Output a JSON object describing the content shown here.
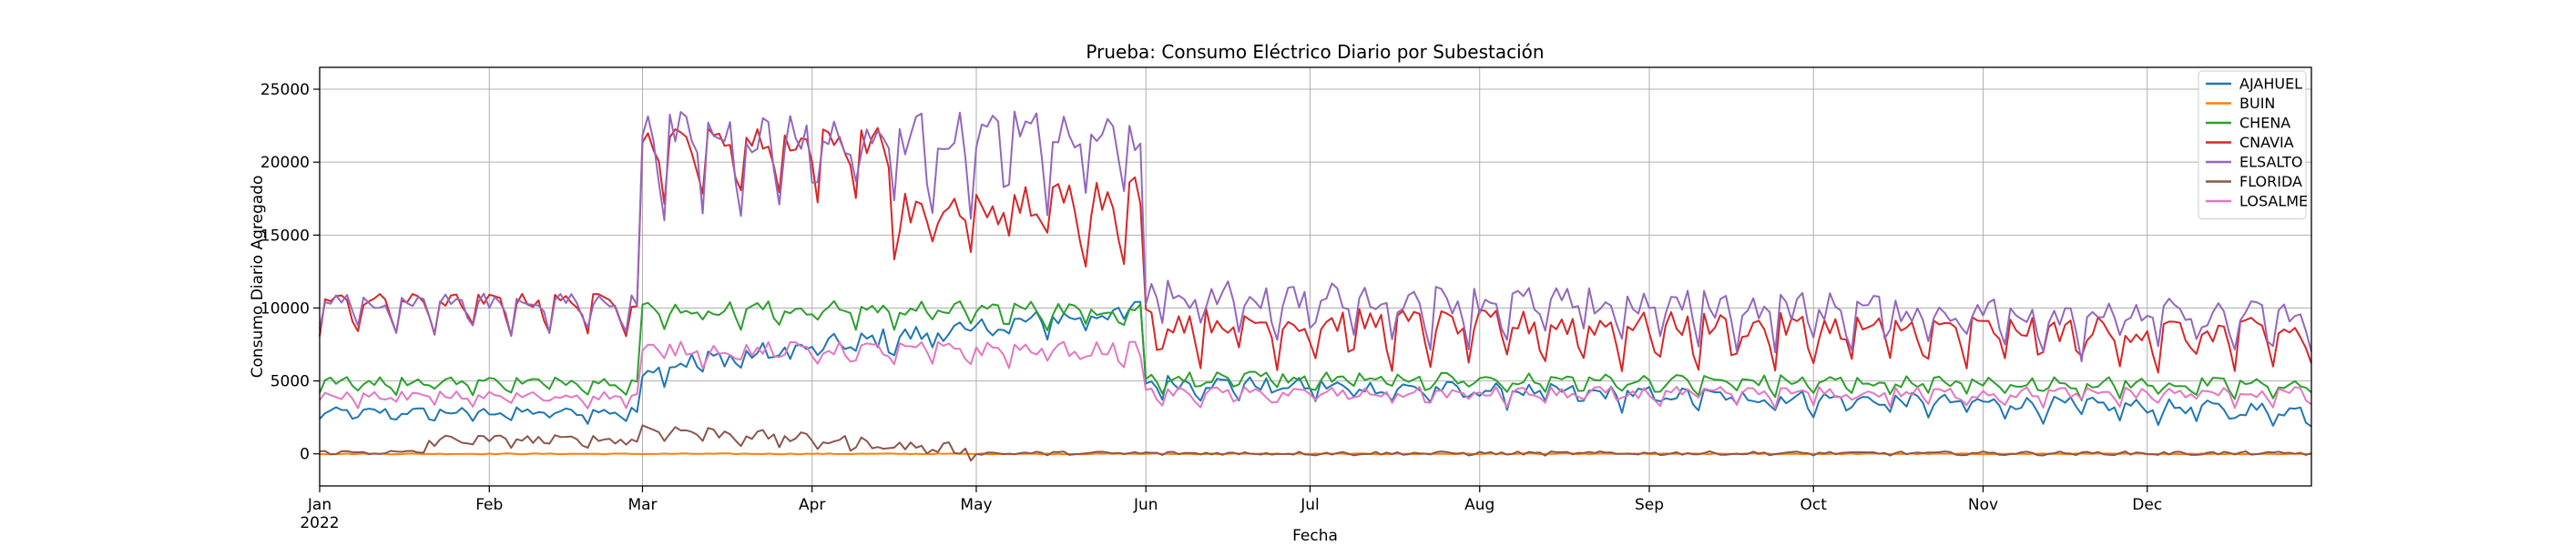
{
  "chart_data": {
    "type": "line",
    "title": "Prueba: Consumo Eléctrico Diario por Subestación",
    "xlabel": "Fecha",
    "ylabel": "Consumo Diario Agregado",
    "x_range": [
      "2022-01-01",
      "2022-12-31"
    ],
    "ylim": [
      -2200,
      26500
    ],
    "y_ticks": [
      0,
      5000,
      10000,
      15000,
      20000,
      25000
    ],
    "x_ticks": [
      {
        "date": "2022-01-01",
        "label": "Jan",
        "sublabel": "2022"
      },
      {
        "date": "2022-02-01",
        "label": "Feb"
      },
      {
        "date": "2022-03-01",
        "label": "Mar"
      },
      {
        "date": "2022-04-01",
        "label": "Apr"
      },
      {
        "date": "2022-05-01",
        "label": "May"
      },
      {
        "date": "2022-06-01",
        "label": "Jun"
      },
      {
        "date": "2022-07-01",
        "label": "Jul"
      },
      {
        "date": "2022-08-01",
        "label": "Aug"
      },
      {
        "date": "2022-09-01",
        "label": "Sep"
      },
      {
        "date": "2022-10-01",
        "label": "Oct"
      },
      {
        "date": "2022-11-01",
        "label": "Nov"
      },
      {
        "date": "2022-12-01",
        "label": "Dec"
      }
    ],
    "grid": true,
    "legend_position": "top-right",
    "series": [
      {
        "name": "AJAHUEL",
        "color": "#1f77b4",
        "segments": [
          {
            "start": "2022-01-01",
            "end": "2022-02-28",
            "base": 2900,
            "weekly_dip": 600,
            "noise": 300
          },
          {
            "start": "2022-03-01",
            "end": "2022-05-31",
            "base": 6000,
            "weekly_dip": 900,
            "noise": 700,
            "trend": 4000
          },
          {
            "start": "2022-06-01",
            "end": "2022-12-31",
            "base": 5000,
            "weekly_dip": 900,
            "noise": 500,
            "trend": -2000
          }
        ]
      },
      {
        "name": "BUIN",
        "color": "#ff7f0e",
        "segments": [
          {
            "start": "2022-01-01",
            "end": "2022-12-31",
            "base": 0,
            "weekly_dip": 0,
            "noise": 30
          }
        ]
      },
      {
        "name": "CHENA",
        "color": "#2ca02c",
        "segments": [
          {
            "start": "2022-01-01",
            "end": "2022-02-28",
            "base": 5000,
            "weekly_dip": 700,
            "noise": 300
          },
          {
            "start": "2022-03-01",
            "end": "2022-05-31",
            "base": 10000,
            "weekly_dip": 1200,
            "noise": 500
          },
          {
            "start": "2022-06-01",
            "end": "2022-12-31",
            "base": 5300,
            "weekly_dip": 900,
            "noise": 400,
            "trend": -500
          }
        ]
      },
      {
        "name": "CNAVIA",
        "color": "#d62728",
        "segments": [
          {
            "start": "2022-01-01",
            "end": "2022-02-28",
            "base": 10500,
            "weekly_dip": 2000,
            "noise": 500
          },
          {
            "start": "2022-03-01",
            "end": "2022-04-15",
            "base": 21500,
            "weekly_dip": 3500,
            "noise": 900
          },
          {
            "start": "2022-04-16",
            "end": "2022-05-31",
            "base": 16500,
            "weekly_dip": 3500,
            "noise": 1500,
            "trend": 1500
          },
          {
            "start": "2022-06-01",
            "end": "2022-12-31",
            "base": 9200,
            "weekly_dip": 2500,
            "noise": 900,
            "trend": -800
          }
        ]
      },
      {
        "name": "ELSALTO",
        "color": "#9467bd",
        "segments": [
          {
            "start": "2022-01-01",
            "end": "2022-02-28",
            "base": 10500,
            "weekly_dip": 2000,
            "noise": 500
          },
          {
            "start": "2022-03-01",
            "end": "2022-05-31",
            "base": 22000,
            "weekly_dip": 4500,
            "noise": 1500
          },
          {
            "start": "2022-06-01",
            "end": "2022-12-31",
            "base": 11000,
            "weekly_dip": 2500,
            "noise": 1000,
            "trend": -1500
          }
        ]
      },
      {
        "name": "FLORIDA",
        "color": "#8c564b",
        "segments": [
          {
            "start": "2022-01-01",
            "end": "2022-01-20",
            "base": 100,
            "weekly_dip": 0,
            "noise": 150
          },
          {
            "start": "2022-01-21",
            "end": "2022-02-28",
            "base": 1000,
            "weekly_dip": 300,
            "noise": 300
          },
          {
            "start": "2022-03-01",
            "end": "2022-04-30",
            "base": 1800,
            "weekly_dip": 500,
            "noise": 400,
            "trend": -1500
          },
          {
            "start": "2022-05-01",
            "end": "2022-12-31",
            "base": 50,
            "weekly_dip": 60,
            "noise": 120
          }
        ]
      },
      {
        "name": "LOSALME",
        "color": "#e377c2",
        "segments": [
          {
            "start": "2022-01-01",
            "end": "2022-02-28",
            "base": 4000,
            "weekly_dip": 600,
            "noise": 300
          },
          {
            "start": "2022-03-01",
            "end": "2022-05-31",
            "base": 7200,
            "weekly_dip": 900,
            "noise": 500
          },
          {
            "start": "2022-06-01",
            "end": "2022-12-31",
            "base": 4200,
            "weekly_dip": 700,
            "noise": 400
          }
        ]
      }
    ]
  }
}
